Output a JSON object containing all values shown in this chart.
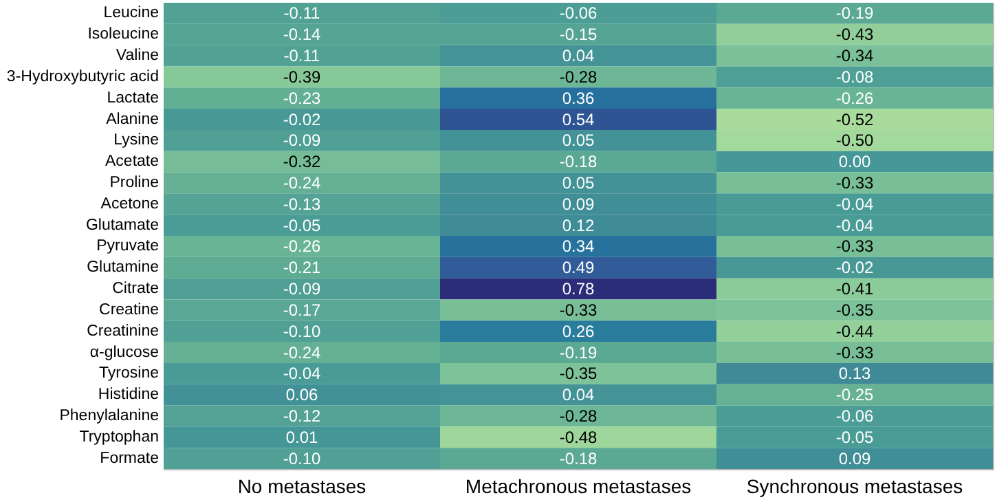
{
  "chart_data": {
    "type": "heatmap",
    "categories": [
      "No metastases",
      "Metachronous metastases",
      "Synchronous metastases"
    ],
    "y_categories": [
      "Leucine",
      "Isoleucine",
      "Valine",
      "3-Hydroxybutyric acid",
      "Lactate",
      "Alanine",
      "Lysine",
      "Acetate",
      "Proline",
      "Acetone",
      "Glutamate",
      "Pyruvate",
      "Glutamine",
      "Citrate",
      "Creatine",
      "Creatinine",
      "α-glucose",
      "Tyrosine",
      "Histidine",
      "Phenylalanine",
      "Tryptophan",
      "Formate"
    ],
    "cells": [
      [
        -0.11,
        -0.06,
        -0.19
      ],
      [
        -0.14,
        -0.15,
        -0.43
      ],
      [
        -0.11,
        0.04,
        -0.34
      ],
      [
        -0.39,
        -0.28,
        -0.08
      ],
      [
        -0.23,
        0.36,
        -0.26
      ],
      [
        -0.02,
        0.54,
        -0.52
      ],
      [
        -0.09,
        0.05,
        -0.5
      ],
      [
        -0.32,
        -0.18,
        0.0
      ],
      [
        -0.24,
        0.05,
        -0.33
      ],
      [
        -0.13,
        0.09,
        -0.04
      ],
      [
        -0.05,
        0.12,
        -0.04
      ],
      [
        -0.26,
        0.34,
        -0.33
      ],
      [
        -0.21,
        0.49,
        -0.02
      ],
      [
        -0.09,
        0.78,
        -0.41
      ],
      [
        -0.17,
        -0.33,
        -0.35
      ],
      [
        -0.1,
        0.26,
        -0.44
      ],
      [
        -0.24,
        -0.19,
        -0.33
      ],
      [
        -0.04,
        -0.35,
        0.13
      ],
      [
        0.06,
        0.04,
        -0.25
      ],
      [
        -0.12,
        -0.28,
        -0.06
      ],
      [
        0.01,
        -0.48,
        -0.05
      ],
      [
        -0.1,
        -0.18,
        0.09
      ]
    ],
    "cell_labels": [
      [
        "-0.11",
        "-0.06",
        "-0.19"
      ],
      [
        "-0.14",
        "-0.15",
        "-0.43"
      ],
      [
        "-0.11",
        "0.04",
        "-0.34"
      ],
      [
        "-0.39",
        "-0.28",
        "-0.08"
      ],
      [
        "-0.23",
        "0.36",
        "-0.26"
      ],
      [
        "-0.02",
        "0.54",
        "-0.52"
      ],
      [
        "-0.09",
        "0.05",
        "-0.50"
      ],
      [
        "-0.32",
        "-0.18",
        "0.00"
      ],
      [
        "-0.24",
        "0.05",
        "-0.33"
      ],
      [
        "-0.13",
        "0.09",
        "-0.04"
      ],
      [
        "-0.05",
        "0.12",
        "-0.04"
      ],
      [
        "-0.26",
        "0.34",
        "-0.33"
      ],
      [
        "-0.21",
        "0.49",
        "-0.02"
      ],
      [
        "-0.09",
        "0.78",
        "-0.41"
      ],
      [
        "-0.17",
        "-0.33",
        "-0.35"
      ],
      [
        "-0.10",
        "0.26",
        "-0.44"
      ],
      [
        "-0.24",
        "-0.19",
        "-0.33"
      ],
      [
        "-0.04",
        "-0.35",
        "0.13"
      ],
      [
        "0.06",
        "0.04",
        "-0.25"
      ],
      [
        "-0.12",
        "-0.28",
        "-0.06"
      ],
      [
        "0.01",
        "-0.48",
        "-0.05"
      ],
      [
        "-0.10",
        "-0.18",
        "0.09"
      ]
    ],
    "data_labels": true
  }
}
